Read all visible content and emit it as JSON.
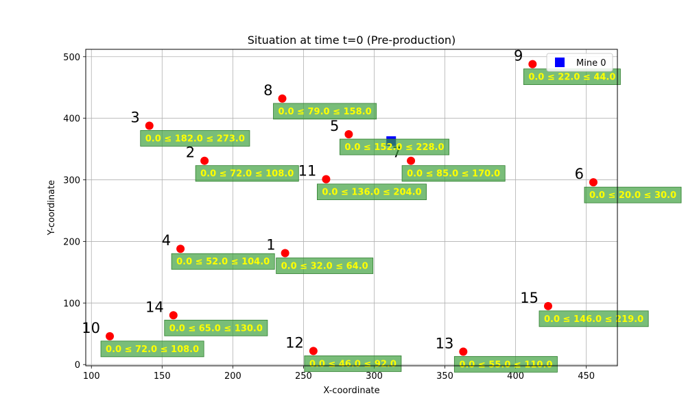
{
  "chart_data": {
    "type": "scatter",
    "title": "Situation at time t=0 (Pre-production)",
    "xlabel": "X-coordinate",
    "ylabel": "Y-coordinate",
    "xlim": [
      96,
      472
    ],
    "ylim": [
      -2,
      512
    ],
    "xticks": [
      100,
      150,
      200,
      250,
      300,
      350,
      400,
      450
    ],
    "yticks": [
      0,
      100,
      200,
      300,
      400,
      500
    ],
    "grid": true,
    "legend": {
      "position": "top-right",
      "entries": [
        "Mine 0"
      ]
    },
    "colors": {
      "point": "#ff0000",
      "mine": "#0000ff",
      "label_box": "#3a9e3a",
      "label_text": "#ffff00"
    },
    "mines": [
      {
        "name": "Mine 0",
        "x": 312,
        "y": 363
      }
    ],
    "points": [
      {
        "id": "1",
        "x": 237,
        "y": 181,
        "range": "0.0 ≤ 32.0 ≤ 64.0"
      },
      {
        "id": "2",
        "x": 180,
        "y": 331,
        "range": "0.0 ≤ 72.0 ≤ 108.0"
      },
      {
        "id": "3",
        "x": 141,
        "y": 388,
        "range": "0.0 ≤ 182.0 ≤ 273.0"
      },
      {
        "id": "4",
        "x": 163,
        "y": 188,
        "range": "0.0 ≤ 52.0 ≤ 104.0"
      },
      {
        "id": "5",
        "x": 282,
        "y": 374,
        "range": "0.0 ≤ 152.0 ≤ 228.0"
      },
      {
        "id": "6",
        "x": 455,
        "y": 296,
        "range": "0.0 ≤ 20.0 ≤ 30.0"
      },
      {
        "id": "7",
        "x": 326,
        "y": 331,
        "range": "0.0 ≤ 85.0 ≤ 170.0"
      },
      {
        "id": "8",
        "x": 235,
        "y": 432,
        "range": "0.0 ≤ 79.0 ≤ 158.0"
      },
      {
        "id": "9",
        "x": 412,
        "y": 488,
        "range": "0.0 ≤ 22.0 ≤ 44.0"
      },
      {
        "id": "10",
        "x": 113,
        "y": 46,
        "range": "0.0 ≤ 72.0 ≤ 108.0"
      },
      {
        "id": "11",
        "x": 266,
        "y": 301,
        "range": "0.0 ≤ 136.0 ≤ 204.0"
      },
      {
        "id": "12",
        "x": 257,
        "y": 22,
        "range": "0.0 ≤ 46.0 ≤ 92.0"
      },
      {
        "id": "13",
        "x": 363,
        "y": 21,
        "range": "0.0 ≤ 55.0 ≤ 110.0"
      },
      {
        "id": "14",
        "x": 158,
        "y": 80,
        "range": "0.0 ≤ 65.0 ≤ 130.0"
      },
      {
        "id": "15",
        "x": 423,
        "y": 95,
        "range": "0.0 ≤ 146.0 ≤ 219.0"
      }
    ]
  }
}
